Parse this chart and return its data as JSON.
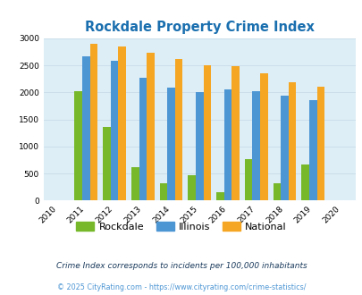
{
  "title": "Rockdale Property Crime Index",
  "years": [
    2010,
    2011,
    2012,
    2013,
    2014,
    2015,
    2016,
    2017,
    2018,
    2019,
    2020
  ],
  "bar_years": [
    2011,
    2012,
    2013,
    2014,
    2015,
    2016,
    2017,
    2018,
    2019
  ],
  "rockdale": [
    2025,
    1360,
    610,
    315,
    475,
    160,
    775,
    315,
    670
  ],
  "illinois": [
    2675,
    2585,
    2275,
    2085,
    2000,
    2050,
    2015,
    1945,
    1855
  ],
  "national": [
    2900,
    2850,
    2735,
    2610,
    2500,
    2480,
    2360,
    2185,
    2105
  ],
  "rockdale_color": "#76b82a",
  "illinois_color": "#4d96d4",
  "national_color": "#f5a623",
  "bg_color": "#ddeef6",
  "ylim": [
    0,
    3000
  ],
  "yticks": [
    0,
    500,
    1000,
    1500,
    2000,
    2500,
    3000
  ],
  "legend_labels": [
    "Rockdale",
    "Illinois",
    "National"
  ],
  "footnote1": "Crime Index corresponds to incidents per 100,000 inhabitants",
  "footnote2": "© 2025 CityRating.com - https://www.cityrating.com/crime-statistics/",
  "title_color": "#1a6faf",
  "footnote1_color": "#1a3a5c",
  "footnote2_color": "#4d96d4"
}
